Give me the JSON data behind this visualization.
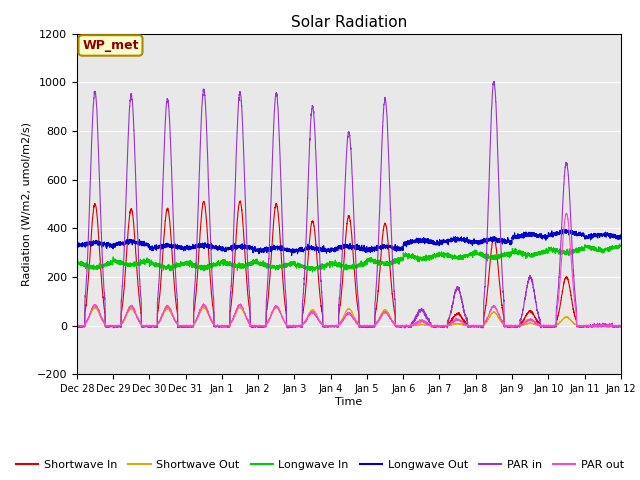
{
  "title": "Solar Radiation",
  "xlabel": "Time",
  "ylabel": "Radiation (W/m2, umol/m2/s)",
  "ylim": [
    -200,
    1200
  ],
  "yticks": [
    -200,
    0,
    200,
    400,
    600,
    800,
    1000,
    1200
  ],
  "annotation": "WP_met",
  "bg_color": "#e8e8e8",
  "fig_color": "#ffffff",
  "legend": [
    {
      "label": "Shortwave In",
      "color": "#dd0000"
    },
    {
      "label": "Shortwave Out",
      "color": "#ddaa00"
    },
    {
      "label": "Longwave In",
      "color": "#00cc00"
    },
    {
      "label": "Longwave Out",
      "color": "#0000cc"
    },
    {
      "label": "PAR in",
      "color": "#9933cc"
    },
    {
      "label": "PAR out",
      "color": "#ff44cc"
    }
  ],
  "xtick_labels": [
    "Dec 28",
    "Dec 29",
    "Dec 30",
    "Dec 31",
    "Jan 1",
    "Jan 2",
    "Jan 3",
    "Jan 4",
    "Jan 5",
    "Jan 6",
    "Jan 7",
    "Jan 8",
    "Jan 9",
    "Jan 10",
    "Jan 11",
    "Jan 12"
  ],
  "num_days": 15,
  "pts_per_day": 288
}
